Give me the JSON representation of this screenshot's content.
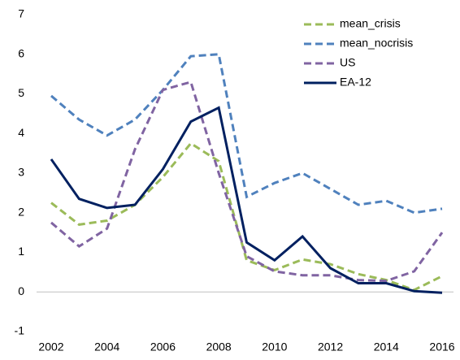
{
  "chart_data": {
    "type": "line",
    "x": [
      2002,
      2003,
      2004,
      2005,
      2006,
      2007,
      2008,
      2009,
      2010,
      2011,
      2012,
      2013,
      2014,
      2015,
      2016
    ],
    "series": [
      {
        "name": "mean_crisis",
        "color": "#9bbb59",
        "line_style": "dashed",
        "values": [
          2.25,
          1.7,
          1.8,
          2.2,
          2.9,
          3.75,
          3.3,
          0.8,
          0.55,
          0.82,
          0.7,
          0.45,
          0.3,
          0.05,
          0.4
        ]
      },
      {
        "name": "mean_nocrisis",
        "color": "#4f81bd",
        "line_style": "dashed",
        "values": [
          4.95,
          4.35,
          3.95,
          4.35,
          5.1,
          5.95,
          6.0,
          2.4,
          2.75,
          3.0,
          2.6,
          2.2,
          2.3,
          2.0,
          2.1
        ]
      },
      {
        "name": "US",
        "color": "#8064a2",
        "line_style": "dashed",
        "values": [
          1.75,
          1.15,
          1.6,
          3.6,
          5.1,
          5.3,
          3.0,
          0.9,
          0.52,
          0.42,
          0.42,
          0.3,
          0.28,
          0.52,
          1.5
        ]
      },
      {
        "name": "EA-12",
        "color": "#002060",
        "line_style": "solid",
        "values": [
          3.35,
          2.35,
          2.12,
          2.2,
          3.1,
          4.3,
          4.65,
          1.25,
          0.8,
          1.4,
          0.6,
          0.22,
          0.22,
          0.02,
          -0.02
        ]
      }
    ],
    "xlim": [
      2002,
      2016
    ],
    "xticks": [
      2002,
      2004,
      2006,
      2008,
      2010,
      2012,
      2014,
      2016
    ],
    "ylim": [
      -1,
      7
    ],
    "yticks": [
      -1,
      0,
      1,
      2,
      3,
      4,
      5,
      6,
      7
    ],
    "legend": "upper-right"
  }
}
